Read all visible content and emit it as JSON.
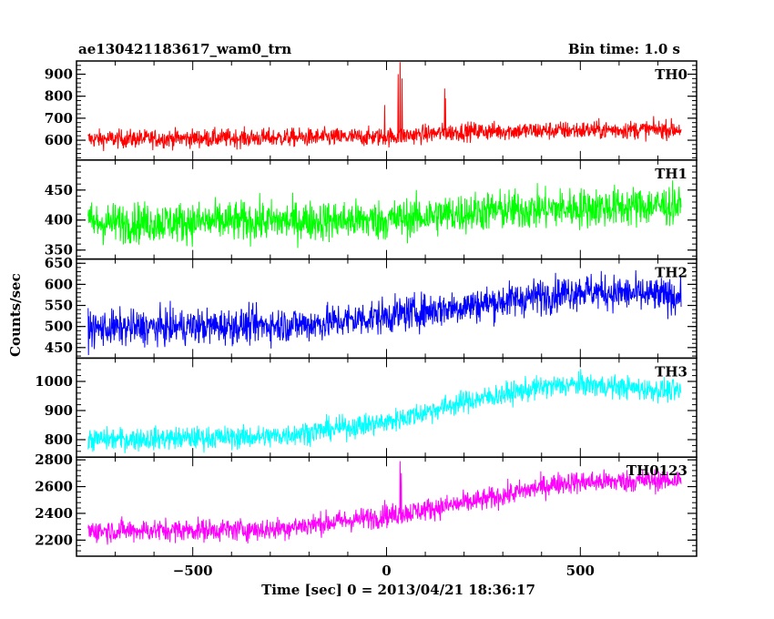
{
  "header": {
    "title_left": "ae130421183617_wam0_trn",
    "title_right": "Bin time: 1.0 s"
  },
  "chart_data": {
    "type": "line",
    "xlabel": "Time [sec] 0 = 2013/04/21 18:36:17",
    "ylabel": "Counts/sec",
    "xlim": [
      -800,
      800
    ],
    "xticks": [
      -500,
      0,
      500
    ],
    "grid": false,
    "panels": [
      {
        "name": "TH0",
        "color": "#ff0000",
        "ylim": [
          510,
          960
        ],
        "yticks": [
          600,
          700,
          800,
          900
        ],
        "series_description": "noisy baseline ~610 rising slowly to ~650, spike to ~950 near t=35, second spike ~830 near t=150",
        "baseline": [
          [
            -770,
            605
          ],
          [
            0,
            615
          ],
          [
            200,
            640
          ],
          [
            760,
            650
          ]
        ],
        "noise": 30,
        "spikes": [
          [
            30,
            900
          ],
          [
            35,
            955
          ],
          [
            40,
            880
          ],
          [
            -5,
            760
          ],
          [
            150,
            835
          ],
          [
            152,
            790
          ]
        ]
      },
      {
        "name": "TH1",
        "color": "#00ff00",
        "ylim": [
          335,
          500
        ],
        "yticks": [
          350,
          400,
          450
        ],
        "baseline": [
          [
            -770,
            395
          ],
          [
            0,
            400
          ],
          [
            250,
            415
          ],
          [
            760,
            425
          ]
        ],
        "noise": 24,
        "spikes": []
      },
      {
        "name": "TH2",
        "color": "#0000ff",
        "ylim": [
          425,
          660
        ],
        "yticks": [
          450,
          500,
          550,
          600,
          650
        ],
        "baseline": [
          [
            -770,
            495
          ],
          [
            -200,
            505
          ],
          [
            0,
            525
          ],
          [
            300,
            560
          ],
          [
            500,
            585
          ],
          [
            760,
            570
          ]
        ],
        "noise": 30,
        "spikes": []
      },
      {
        "name": "TH3",
        "color": "#00ffff",
        "ylim": [
          740,
          1080
        ],
        "yticks": [
          800,
          900,
          1000
        ],
        "baseline": [
          [
            -770,
            800
          ],
          [
            -300,
            810
          ],
          [
            0,
            860
          ],
          [
            200,
            930
          ],
          [
            400,
            980
          ],
          [
            500,
            990
          ],
          [
            760,
            965
          ]
        ],
        "noise": 28,
        "spikes": []
      },
      {
        "name": "TH0123",
        "color": "#ff00ff",
        "ylim": [
          2080,
          2820
        ],
        "yticks": [
          2200,
          2400,
          2600,
          2800
        ],
        "baseline": [
          [
            -770,
            2270
          ],
          [
            -300,
            2280
          ],
          [
            0,
            2380
          ],
          [
            250,
            2500
          ],
          [
            450,
            2630
          ],
          [
            760,
            2650
          ]
        ],
        "noise": 60,
        "spikes": [
          [
            35,
            2790
          ],
          [
            38,
            2700
          ],
          [
            -5,
            2500
          ]
        ]
      }
    ]
  }
}
